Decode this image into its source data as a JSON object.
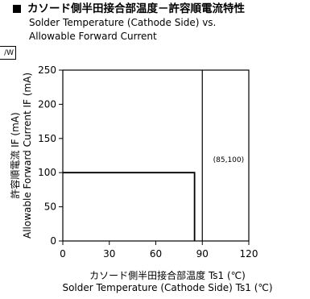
{
  "side_tab": "/W",
  "header": {
    "title_jp": "カソード側半田接合部温度－許容順電流特性",
    "title_en_line1": "Solder Temperature (Cathode Side) vs.",
    "title_en_line2": "Allowable Forward Current"
  },
  "chart_data": {
    "type": "line",
    "title": "カソード側半田接合部温度－許容順電流特性",
    "subtitle": "Solder Temperature (Cathode Side) vs. Allowable Forward Current",
    "xlabel_jp": "カソード側半田接合部温度 Ts1 (℃)",
    "xlabel_en": "Solder Temperature (Cathode Side) Ts1 (℃)",
    "ylabel_jp": "許容順電流 IF (mA)",
    "ylabel_en": "Allowable Forward Current IF (mA)",
    "xlim": [
      0,
      120
    ],
    "ylim": [
      0,
      250
    ],
    "xticks": [
      0,
      30,
      60,
      90,
      120
    ],
    "yticks": [
      0,
      50,
      100,
      150,
      200,
      250
    ],
    "grid": false,
    "series": [
      {
        "x": [
          0,
          85,
          85
        ],
        "y": [
          100,
          100,
          0
        ],
        "color": "#000000"
      }
    ],
    "reference_lines": [
      {
        "x": 90,
        "color": "#000000"
      }
    ],
    "annotations": [
      {
        "text": "(85,100)",
        "x": 85,
        "y": 100
      }
    ]
  }
}
